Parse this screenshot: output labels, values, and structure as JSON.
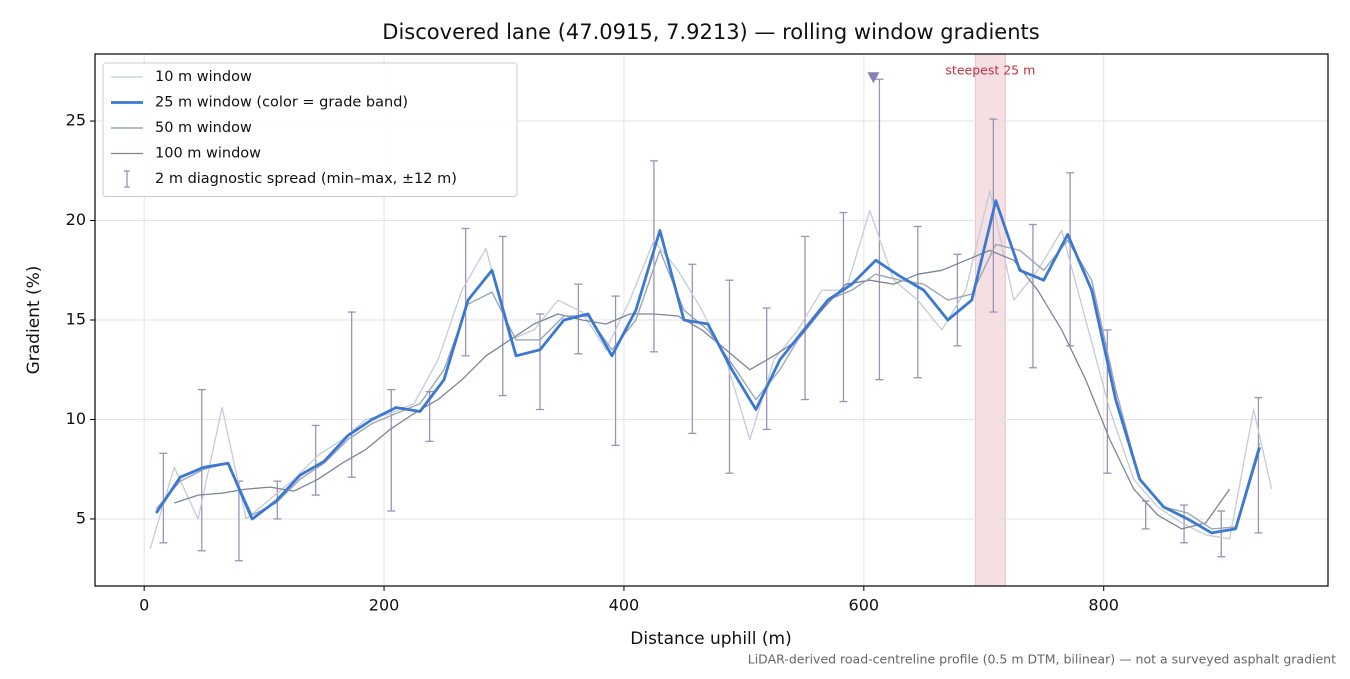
{
  "chart_data": {
    "type": "line",
    "title": "Discovered lane (47.0915, 7.9213) — rolling window gradients",
    "x_label": "Distance uphill (m)",
    "y_label": "Gradient (%)",
    "footnote": "LiDAR-derived road-centreline profile (0.5 m DTM, bilinear) — not a surveyed asphalt gradient",
    "xlim": [
      -41,
      987
    ],
    "ylim": [
      1.63,
      28.37
    ],
    "xticks": [
      0,
      200,
      400,
      600,
      800
    ],
    "yticks": [
      5,
      10,
      15,
      20,
      25
    ],
    "grid": true,
    "legend": "upper left",
    "highlight": {
      "x": [
        693,
        718
      ],
      "label": "steepest 25 m",
      "color": "#d9808a"
    },
    "marker": {
      "x": 608,
      "y": 27.2,
      "color": "#8a7fb0"
    },
    "series": [
      {
        "name": "10 m window",
        "color": "#c5ccd6",
        "width": 1.3,
        "x": [
          5,
          25,
          45,
          65,
          85,
          105,
          125,
          145,
          165,
          185,
          205,
          225,
          245,
          265,
          285,
          305,
          325,
          345,
          365,
          385,
          405,
          425,
          445,
          465,
          485,
          505,
          525,
          545,
          565,
          585,
          605,
          625,
          645,
          665,
          685,
          705,
          725,
          745,
          765,
          785,
          805,
          825,
          845,
          865,
          885,
          905,
          925,
          940
        ],
        "values": [
          3.5,
          7.6,
          5.0,
          10.6,
          5.0,
          6.0,
          7.0,
          8.2,
          9.0,
          10.0,
          10.3,
          10.8,
          13.0,
          16.5,
          18.6,
          14.0,
          14.5,
          16.0,
          15.4,
          13.5,
          16.0,
          19.0,
          17.5,
          15.5,
          13.0,
          9.0,
          13.0,
          14.5,
          16.5,
          16.5,
          20.5,
          17.0,
          16.0,
          14.5,
          16.5,
          21.5,
          16.0,
          17.5,
          19.5,
          15.0,
          10.5,
          7.0,
          5.6,
          4.8,
          4.2,
          4.0,
          10.5,
          6.5
        ]
      },
      {
        "name": "25 m window (color = grade band)",
        "color": "#3a78d4",
        "width": 2.8,
        "x": [
          10,
          30,
          50,
          70,
          90,
          110,
          130,
          150,
          170,
          190,
          210,
          230,
          250,
          270,
          290,
          310,
          330,
          350,
          370,
          390,
          410,
          430,
          450,
          470,
          490,
          510,
          530,
          550,
          570,
          590,
          610,
          630,
          650,
          670,
          690,
          710,
          730,
          750,
          770,
          790,
          810,
          830,
          850,
          870,
          890,
          910,
          930
        ],
        "values": [
          5.3,
          7.1,
          7.6,
          7.8,
          5.0,
          5.9,
          7.2,
          7.9,
          9.2,
          10.0,
          10.6,
          10.4,
          12.0,
          16.0,
          17.5,
          13.2,
          13.5,
          15.0,
          15.3,
          13.2,
          15.5,
          19.5,
          15.0,
          14.8,
          12.5,
          10.5,
          13.0,
          14.5,
          16.0,
          16.8,
          18.0,
          17.2,
          16.5,
          15.0,
          16.0,
          21.0,
          17.5,
          17.0,
          19.3,
          16.5,
          11.0,
          7.0,
          5.6,
          5.0,
          4.3,
          4.5,
          8.6
        ]
      },
      {
        "name": "50 m window",
        "color": "#9aa6b6",
        "width": 1.4,
        "x": [
          10,
          30,
          50,
          70,
          90,
          110,
          130,
          150,
          170,
          190,
          210,
          230,
          250,
          270,
          290,
          310,
          330,
          350,
          370,
          390,
          410,
          430,
          450,
          470,
          490,
          510,
          530,
          550,
          570,
          590,
          610,
          630,
          650,
          670,
          690,
          710,
          730,
          750,
          770,
          790,
          810,
          830,
          850,
          870,
          890,
          910,
          930
        ],
        "values": [
          5.5,
          6.9,
          7.5,
          7.8,
          5.2,
          5.8,
          7.0,
          7.8,
          9.0,
          9.8,
          10.3,
          10.8,
          12.5,
          15.8,
          16.4,
          14.0,
          14.0,
          15.2,
          15.2,
          13.5,
          15.0,
          18.5,
          15.5,
          14.5,
          12.8,
          11.0,
          12.5,
          14.5,
          16.0,
          16.5,
          17.3,
          17.0,
          16.8,
          16.0,
          16.3,
          18.8,
          18.5,
          17.5,
          19.0,
          17.0,
          11.5,
          7.0,
          5.6,
          5.3,
          4.5,
          4.6,
          8.8
        ]
      },
      {
        "name": "100 m window",
        "color": "#7d8595",
        "width": 1.3,
        "x": [
          25,
          45,
          65,
          85,
          105,
          125,
          145,
          165,
          185,
          205,
          225,
          245,
          265,
          285,
          305,
          325,
          345,
          365,
          385,
          405,
          425,
          445,
          465,
          485,
          505,
          525,
          545,
          565,
          585,
          605,
          625,
          645,
          665,
          685,
          705,
          725,
          745,
          765,
          785,
          805,
          825,
          845,
          865,
          885,
          905
        ],
        "values": [
          5.8,
          6.2,
          6.3,
          6.5,
          6.6,
          6.4,
          7.0,
          7.8,
          8.5,
          9.5,
          10.3,
          11.0,
          12.0,
          13.2,
          14.0,
          14.8,
          15.3,
          15.0,
          14.8,
          15.3,
          15.3,
          15.2,
          14.5,
          13.5,
          12.5,
          13.2,
          14.0,
          15.5,
          16.8,
          17.0,
          16.8,
          17.3,
          17.5,
          18.0,
          18.5,
          18.0,
          16.5,
          14.5,
          12.0,
          9.0,
          6.5,
          5.2,
          4.5,
          4.8,
          6.5
        ]
      }
    ],
    "errorbars": {
      "name": "2 m diagnostic spread (min–max, ±12 m)",
      "color": "#9a93b8",
      "x": [
        16,
        48,
        79,
        111,
        143,
        173,
        206,
        238,
        268,
        299,
        330,
        362,
        393,
        425,
        457,
        488,
        519,
        551,
        583,
        613,
        645,
        678,
        708,
        741,
        772,
        803,
        835,
        867,
        898,
        929
      ],
      "low": [
        3.8,
        3.4,
        2.9,
        5.0,
        6.2,
        7.1,
        5.4,
        8.9,
        13.2,
        11.2,
        10.5,
        13.3,
        8.7,
        13.4,
        9.3,
        7.3,
        9.5,
        11.0,
        10.9,
        12.0,
        12.1,
        13.7,
        15.4,
        12.6,
        13.7,
        7.3,
        4.5,
        3.8,
        3.1,
        4.3
      ],
      "high": [
        8.3,
        11.5,
        6.9,
        6.9,
        9.7,
        15.4,
        11.5,
        11.4,
        19.6,
        19.2,
        15.3,
        16.8,
        16.2,
        23.0,
        17.8,
        17.0,
        15.6,
        19.2,
        20.4,
        27.1,
        19.7,
        18.3,
        25.1,
        19.8,
        22.4,
        14.5,
        5.9,
        5.7,
        5.4,
        11.1
      ]
    }
  }
}
